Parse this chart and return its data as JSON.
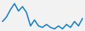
{
  "x": [
    0,
    1,
    2,
    3,
    4,
    5,
    6,
    7,
    8,
    9,
    10,
    11,
    12,
    13,
    14,
    15,
    16,
    17,
    18,
    19,
    20
  ],
  "y": [
    3.5,
    5.0,
    7.5,
    9.5,
    7.0,
    8.5,
    6.5,
    2.0,
    4.0,
    2.0,
    1.5,
    2.5,
    1.5,
    1.0,
    2.0,
    1.0,
    2.5,
    1.5,
    3.5,
    2.0,
    4.5
  ],
  "line_color": "#1b7fc4",
  "bg_color": "#f2f2f2",
  "linewidth": 1.3
}
